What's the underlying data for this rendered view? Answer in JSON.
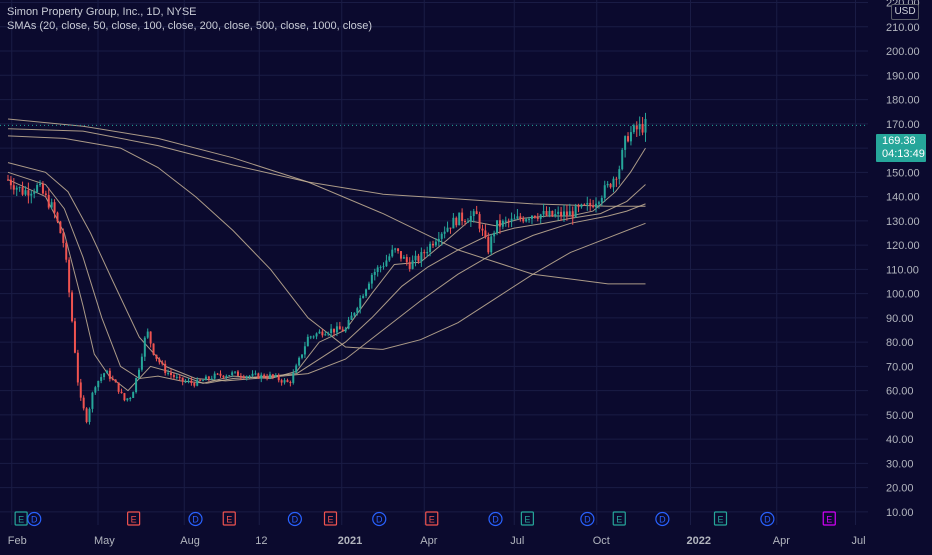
{
  "legend": {
    "title": "Simon Property Group, Inc., 1D, NYSE",
    "indicator": "SMAs (20, close, 50, close, 100, close, 200, close, 500, close, 1000, close)"
  },
  "currency": "USD",
  "last_price": {
    "value": "169.38",
    "countdown": "04:13:49"
  },
  "colors": {
    "background": "#0b0a2e",
    "up": "#26a69a",
    "down": "#ef5350",
    "sma": "#c8b496",
    "grid": "#1a1c45",
    "dividend": "#2962ff",
    "earnings_up": "#26a69a",
    "earnings_down": "#ef5350",
    "earnings_future": "#d500f9"
  },
  "chart_data": {
    "type": "candlestick",
    "symbol": "Simon Property Group, Inc.",
    "interval": "1D",
    "exchange": "NYSE",
    "x_labels": [
      "Feb",
      "May",
      "Aug",
      "12",
      "2021",
      "Apr",
      "Jul",
      "Oct",
      "2022",
      "Apr",
      "Jul"
    ],
    "y_ticks": [
      10,
      20,
      30,
      40,
      50,
      60,
      70,
      80,
      90,
      100,
      110,
      120,
      130,
      140,
      150,
      160,
      170,
      180,
      190,
      200,
      210,
      220
    ],
    "y_range": [
      5,
      226
    ],
    "price_path": [
      [
        0,
        147
      ],
      [
        0.4,
        142
      ],
      [
        0.8,
        144
      ],
      [
        1.2,
        135
      ],
      [
        1.5,
        120
      ],
      [
        1.7,
        90
      ],
      [
        1.9,
        58
      ],
      [
        2.1,
        48
      ],
      [
        2.3,
        62
      ],
      [
        2.6,
        68
      ],
      [
        2.9,
        62
      ],
      [
        3.1,
        56
      ],
      [
        3.3,
        58
      ],
      [
        3.5,
        70
      ],
      [
        3.7,
        85
      ],
      [
        3.9,
        75
      ],
      [
        4.2,
        68
      ],
      [
        4.6,
        64
      ],
      [
        5,
        63
      ],
      [
        5.5,
        66
      ],
      [
        6,
        67
      ],
      [
        6.5,
        66
      ],
      [
        7,
        66
      ],
      [
        7.5,
        63
      ],
      [
        7.7,
        70
      ],
      [
        8,
        82
      ],
      [
        8.5,
        85
      ],
      [
        9,
        85
      ],
      [
        9.3,
        95
      ],
      [
        9.7,
        108
      ],
      [
        10,
        112
      ],
      [
        10.3,
        118
      ],
      [
        10.7,
        112
      ],
      [
        11,
        115
      ],
      [
        11.5,
        125
      ],
      [
        12,
        131
      ],
      [
        12.5,
        132
      ],
      [
        12.8,
        118
      ],
      [
        13,
        128
      ],
      [
        13.5,
        130
      ],
      [
        14,
        133
      ],
      [
        14.5,
        132
      ],
      [
        15,
        133
      ],
      [
        15.5,
        136
      ],
      [
        16,
        144
      ],
      [
        16.3,
        152
      ],
      [
        16.5,
        165
      ],
      [
        16.8,
        168
      ],
      [
        17,
        169.38
      ]
    ],
    "sma_lines": [
      {
        "period": 20,
        "points": [
          [
            0,
            147
          ],
          [
            1,
            140
          ],
          [
            1.5,
            125
          ],
          [
            2,
            95
          ],
          [
            2.3,
            75
          ],
          [
            2.7,
            66
          ],
          [
            3.2,
            60
          ],
          [
            3.8,
            70
          ],
          [
            4.5,
            67
          ],
          [
            5.2,
            63
          ],
          [
            6,
            66
          ],
          [
            7,
            65
          ],
          [
            7.7,
            68
          ],
          [
            8.3,
            80
          ],
          [
            9,
            85
          ],
          [
            9.7,
            100
          ],
          [
            10.3,
            112
          ],
          [
            11,
            113
          ],
          [
            11.7,
            122
          ],
          [
            12.3,
            130
          ],
          [
            13,
            128
          ],
          [
            13.7,
            131
          ],
          [
            14.4,
            132
          ],
          [
            15,
            132
          ],
          [
            15.6,
            134
          ],
          [
            16.2,
            142
          ],
          [
            16.6,
            150
          ],
          [
            17,
            160
          ]
        ]
      },
      {
        "period": 50,
        "points": [
          [
            0,
            150
          ],
          [
            1,
            145
          ],
          [
            1.5,
            135
          ],
          [
            2,
            115
          ],
          [
            2.5,
            90
          ],
          [
            3,
            70
          ],
          [
            3.5,
            65
          ],
          [
            4,
            66
          ],
          [
            4.6,
            64
          ],
          [
            5.3,
            63
          ],
          [
            6,
            65
          ],
          [
            7,
            66
          ],
          [
            7.7,
            67
          ],
          [
            8.4,
            74
          ],
          [
            9,
            80
          ],
          [
            9.7,
            90
          ],
          [
            10.5,
            103
          ],
          [
            11.2,
            111
          ],
          [
            12,
            118
          ],
          [
            12.8,
            124
          ],
          [
            13.5,
            127
          ],
          [
            14.3,
            129
          ],
          [
            15,
            131
          ],
          [
            15.8,
            133
          ],
          [
            16.5,
            138
          ],
          [
            17,
            145
          ]
        ]
      },
      {
        "period": 100,
        "points": [
          [
            0,
            154
          ],
          [
            1,
            150
          ],
          [
            1.6,
            142
          ],
          [
            2.2,
            125
          ],
          [
            2.8,
            105
          ],
          [
            3.5,
            82
          ],
          [
            4.2,
            70
          ],
          [
            5,
            65
          ],
          [
            5.8,
            64
          ],
          [
            6.6,
            65
          ],
          [
            7.3,
            66
          ],
          [
            8,
            67
          ],
          [
            9,
            73
          ],
          [
            10,
            85
          ],
          [
            11,
            97
          ],
          [
            12,
            108
          ],
          [
            13,
            117
          ],
          [
            14,
            124
          ],
          [
            15,
            129
          ],
          [
            16,
            132
          ],
          [
            16.5,
            134
          ],
          [
            17,
            137
          ]
        ]
      },
      {
        "period": 200,
        "points": [
          [
            0,
            165
          ],
          [
            1.5,
            164
          ],
          [
            3,
            160
          ],
          [
            4,
            152
          ],
          [
            5,
            140
          ],
          [
            6,
            126
          ],
          [
            7,
            110
          ],
          [
            8,
            90
          ],
          [
            9,
            78
          ],
          [
            10,
            77
          ],
          [
            11,
            81
          ],
          [
            12,
            88
          ],
          [
            13,
            98
          ],
          [
            14,
            108
          ],
          [
            15,
            117
          ],
          [
            16,
            123
          ],
          [
            17,
            129
          ]
        ]
      },
      {
        "period": 500,
        "points": [
          [
            0,
            168
          ],
          [
            2,
            167
          ],
          [
            4,
            161
          ],
          [
            6,
            153
          ],
          [
            8,
            146
          ],
          [
            10,
            141
          ],
          [
            12,
            139
          ],
          [
            14,
            137
          ],
          [
            16,
            136
          ],
          [
            17,
            136
          ]
        ]
      },
      {
        "period": 1000,
        "points": [
          [
            0,
            172
          ],
          [
            2,
            169
          ],
          [
            4,
            164
          ],
          [
            6,
            156
          ],
          [
            8,
            146
          ],
          [
            10,
            133
          ],
          [
            12,
            118
          ],
          [
            14,
            108
          ],
          [
            15,
            106
          ],
          [
            16,
            104
          ],
          [
            17,
            104
          ]
        ]
      }
    ],
    "events": [
      {
        "type": "E",
        "tone": "up",
        "x": 0.35
      },
      {
        "type": "D",
        "tone": "div",
        "x": 0.7
      },
      {
        "type": "E",
        "tone": "down",
        "x": 3.35
      },
      {
        "type": "D",
        "tone": "div",
        "x": 5.0
      },
      {
        "type": "E",
        "tone": "down",
        "x": 5.9
      },
      {
        "type": "D",
        "tone": "div",
        "x": 7.65
      },
      {
        "type": "E",
        "tone": "down",
        "x": 8.6
      },
      {
        "type": "D",
        "tone": "div",
        "x": 9.9
      },
      {
        "type": "E",
        "tone": "down",
        "x": 11.3
      },
      {
        "type": "D",
        "tone": "div",
        "x": 13.0
      },
      {
        "type": "E",
        "tone": "up",
        "x": 13.85
      },
      {
        "type": "D",
        "tone": "div",
        "x": 15.45
      },
      {
        "type": "E",
        "tone": "up",
        "x": 16.3
      },
      {
        "type": "D",
        "tone": "div",
        "x": 17.45
      },
      {
        "type": "E",
        "tone": "up",
        "x": 19.0
      },
      {
        "type": "D",
        "tone": "div",
        "x": 20.25
      },
      {
        "type": "E",
        "tone": "future",
        "x": 21.9
      }
    ]
  }
}
